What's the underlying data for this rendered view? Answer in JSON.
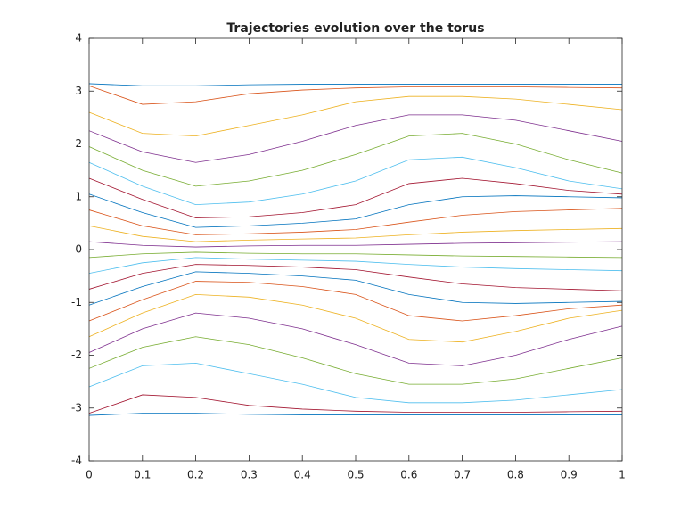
{
  "chart_data": {
    "type": "line",
    "title": "Trajectories evolution over the torus",
    "x": [
      0,
      0.1,
      0.2,
      0.3,
      0.4,
      0.5,
      0.6,
      0.7,
      0.8,
      0.9,
      1
    ],
    "xlim": [
      0,
      1
    ],
    "xticks": [
      0,
      0.1,
      0.2,
      0.3,
      0.4,
      0.5,
      0.6,
      0.7,
      0.8,
      0.9,
      1
    ],
    "ylim": [
      -4,
      4
    ],
    "yticks": [
      -4,
      -3,
      -2,
      -1,
      0,
      1,
      2,
      3,
      4
    ],
    "series": [
      {
        "color": "#0072BD",
        "values": [
          3.14,
          3.1,
          3.1,
          3.12,
          3.13,
          3.13,
          3.13,
          3.13,
          3.13,
          3.13,
          3.13
        ]
      },
      {
        "color": "#D95319",
        "values": [
          3.1,
          2.75,
          2.8,
          2.95,
          3.02,
          3.06,
          3.08,
          3.08,
          3.08,
          3.07,
          3.06
        ]
      },
      {
        "color": "#EDB120",
        "values": [
          2.6,
          2.2,
          2.15,
          2.35,
          2.55,
          2.8,
          2.9,
          2.9,
          2.85,
          2.75,
          2.65
        ]
      },
      {
        "color": "#7E2F8E",
        "values": [
          2.25,
          1.85,
          1.65,
          1.8,
          2.05,
          2.35,
          2.55,
          2.55,
          2.45,
          2.25,
          2.05
        ]
      },
      {
        "color": "#77AC30",
        "values": [
          1.95,
          1.5,
          1.2,
          1.3,
          1.5,
          1.8,
          2.15,
          2.2,
          2.0,
          1.7,
          1.45
        ]
      },
      {
        "color": "#4DBEEE",
        "values": [
          1.65,
          1.2,
          0.85,
          0.9,
          1.05,
          1.3,
          1.7,
          1.75,
          1.55,
          1.3,
          1.15
        ]
      },
      {
        "color": "#A2142F",
        "values": [
          1.35,
          0.95,
          0.6,
          0.62,
          0.7,
          0.85,
          1.25,
          1.35,
          1.25,
          1.12,
          1.05
        ]
      },
      {
        "color": "#0072BD",
        "values": [
          1.05,
          0.7,
          0.42,
          0.45,
          0.5,
          0.58,
          0.85,
          1.0,
          1.02,
          1.0,
          0.98
        ]
      },
      {
        "color": "#D95319",
        "values": [
          0.75,
          0.45,
          0.28,
          0.3,
          0.33,
          0.38,
          0.52,
          0.65,
          0.72,
          0.75,
          0.78
        ]
      },
      {
        "color": "#EDB120",
        "values": [
          0.45,
          0.25,
          0.15,
          0.18,
          0.2,
          0.22,
          0.28,
          0.33,
          0.36,
          0.38,
          0.4
        ]
      },
      {
        "color": "#7E2F8E",
        "values": [
          0.15,
          0.08,
          0.05,
          0.07,
          0.08,
          0.08,
          0.1,
          0.12,
          0.13,
          0.14,
          0.15
        ]
      },
      {
        "color": "#77AC30",
        "values": [
          -0.15,
          -0.08,
          -0.05,
          -0.07,
          -0.08,
          -0.08,
          -0.1,
          -0.12,
          -0.13,
          -0.14,
          -0.15
        ]
      },
      {
        "color": "#4DBEEE",
        "values": [
          -0.45,
          -0.25,
          -0.15,
          -0.18,
          -0.2,
          -0.22,
          -0.28,
          -0.33,
          -0.36,
          -0.38,
          -0.4
        ]
      },
      {
        "color": "#A2142F",
        "values": [
          -0.75,
          -0.45,
          -0.28,
          -0.3,
          -0.33,
          -0.38,
          -0.52,
          -0.65,
          -0.72,
          -0.75,
          -0.78
        ]
      },
      {
        "color": "#0072BD",
        "values": [
          -1.05,
          -0.7,
          -0.42,
          -0.45,
          -0.5,
          -0.58,
          -0.85,
          -1.0,
          -1.02,
          -1.0,
          -0.98
        ]
      },
      {
        "color": "#D95319",
        "values": [
          -1.35,
          -0.95,
          -0.6,
          -0.62,
          -0.7,
          -0.85,
          -1.25,
          -1.35,
          -1.25,
          -1.12,
          -1.05
        ]
      },
      {
        "color": "#EDB120",
        "values": [
          -1.65,
          -1.2,
          -0.85,
          -0.9,
          -1.05,
          -1.3,
          -1.7,
          -1.75,
          -1.55,
          -1.3,
          -1.15
        ]
      },
      {
        "color": "#7E2F8E",
        "values": [
          -1.95,
          -1.5,
          -1.2,
          -1.3,
          -1.5,
          -1.8,
          -2.15,
          -2.2,
          -2.0,
          -1.7,
          -1.45
        ]
      },
      {
        "color": "#77AC30",
        "values": [
          -2.25,
          -1.85,
          -1.65,
          -1.8,
          -2.05,
          -2.35,
          -2.55,
          -2.55,
          -2.45,
          -2.25,
          -2.05
        ]
      },
      {
        "color": "#4DBEEE",
        "values": [
          -2.6,
          -2.2,
          -2.15,
          -2.35,
          -2.55,
          -2.8,
          -2.9,
          -2.9,
          -2.85,
          -2.75,
          -2.65
        ]
      },
      {
        "color": "#A2142F",
        "values": [
          -3.1,
          -2.75,
          -2.8,
          -2.95,
          -3.02,
          -3.06,
          -3.08,
          -3.08,
          -3.08,
          -3.07,
          -3.06
        ]
      },
      {
        "color": "#0072BD",
        "values": [
          -3.14,
          -3.1,
          -3.1,
          -3.12,
          -3.13,
          -3.13,
          -3.13,
          -3.13,
          -3.13,
          -3.13,
          -3.13
        ]
      }
    ]
  }
}
